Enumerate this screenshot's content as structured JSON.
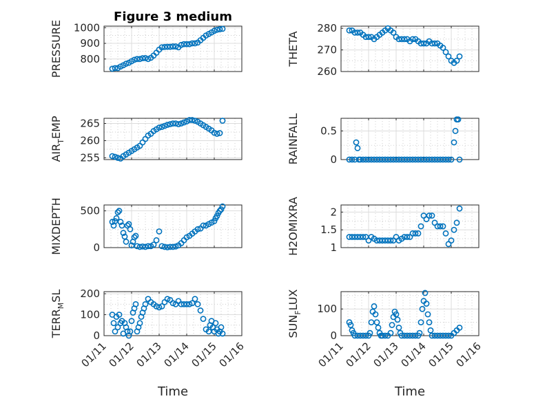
{
  "figure_title": "Figure 3 medium",
  "chart_data": [
    {
      "type": "scatter",
      "ylabel": "PRESSURE",
      "ylabel_sub": "",
      "xlim": [
        11.0,
        16.0
      ],
      "ylim": [
        720,
        1010
      ],
      "yticks": [
        800,
        900,
        1000
      ],
      "yminor": [
        750,
        850,
        950
      ],
      "x": [
        11.3,
        11.4,
        11.5,
        11.6,
        11.7,
        11.8,
        11.9,
        12.0,
        12.1,
        12.2,
        12.3,
        12.4,
        12.5,
        12.6,
        12.7,
        12.8,
        12.9,
        13.0,
        13.1,
        13.2,
        13.3,
        13.4,
        13.5,
        13.6,
        13.7,
        13.8,
        13.9,
        14.0,
        14.1,
        14.2,
        14.3,
        14.4,
        14.5,
        14.6,
        14.7,
        14.8,
        14.9,
        15.0,
        15.1,
        15.2,
        15.3
      ],
      "y": [
        738,
        742,
        742,
        752,
        760,
        770,
        776,
        786,
        795,
        800,
        800,
        805,
        806,
        800,
        808,
        822,
        840,
        860,
        875,
        877,
        878,
        878,
        880,
        880,
        875,
        890,
        895,
        895,
        895,
        900,
        900,
        905,
        920,
        935,
        950,
        960,
        970,
        980,
        987,
        990,
        993
      ]
    },
    {
      "type": "scatter",
      "ylabel": "THETA",
      "ylabel_sub": "",
      "xlim": [
        11.0,
        16.0
      ],
      "ylim": [
        260,
        281
      ],
      "yticks": [
        260,
        270,
        280
      ],
      "yminor": [
        265,
        275
      ],
      "x": [
        11.3,
        11.4,
        11.5,
        11.6,
        11.7,
        11.8,
        11.9,
        12.0,
        12.1,
        12.2,
        12.3,
        12.4,
        12.5,
        12.6,
        12.7,
        12.8,
        12.9,
        13.0,
        13.1,
        13.2,
        13.3,
        13.4,
        13.5,
        13.6,
        13.7,
        13.8,
        13.9,
        14.0,
        14.1,
        14.2,
        14.3,
        14.4,
        14.5,
        14.6,
        14.7,
        14.8,
        14.9,
        15.0,
        15.1,
        15.2,
        15.3
      ],
      "y": [
        279,
        279,
        278,
        278,
        278,
        277,
        276,
        276,
        276,
        275,
        276,
        277,
        278,
        279,
        280,
        279,
        278,
        276,
        275,
        275,
        275,
        275,
        274,
        275,
        275,
        274,
        273,
        273,
        273,
        274,
        273,
        273,
        273,
        272,
        271,
        269,
        267,
        265,
        264,
        265,
        267
      ]
    },
    {
      "type": "scatter",
      "ylabel": "AIR",
      "ylabel_sub": "T",
      "ylabel_suffix": "EMP",
      "xlim": [
        11.0,
        16.0
      ],
      "ylim": [
        254.5,
        266.5
      ],
      "yticks": [
        255,
        260,
        265
      ],
      "yminor": [
        257.5,
        262.5
      ],
      "x": [
        11.3,
        11.4,
        11.5,
        11.6,
        11.7,
        11.8,
        11.9,
        12.0,
        12.1,
        12.2,
        12.3,
        12.4,
        12.5,
        12.6,
        12.7,
        12.8,
        12.9,
        13.0,
        13.1,
        13.2,
        13.3,
        13.4,
        13.5,
        13.6,
        13.7,
        13.8,
        13.9,
        14.0,
        14.1,
        14.2,
        14.3,
        14.4,
        14.5,
        14.6,
        14.7,
        14.8,
        14.9,
        15.0,
        15.1,
        15.2,
        15.3
      ],
      "y": [
        255.5,
        255.3,
        255.0,
        254.8,
        255.5,
        256.0,
        256.5,
        257.0,
        257.5,
        258.0,
        258.5,
        259.5,
        260.5,
        261.5,
        262.0,
        262.8,
        263.3,
        263.8,
        264.0,
        264.3,
        264.6,
        264.8,
        265.0,
        265.0,
        264.8,
        265.0,
        265.3,
        265.6,
        266.0,
        266.0,
        265.8,
        265.5,
        265.0,
        264.5,
        264.0,
        263.5,
        263.0,
        262.3,
        262.0,
        262.2,
        265.8
      ]
    },
    {
      "type": "scatter",
      "ylabel": "RAINFALL",
      "ylabel_sub": "",
      "xlim": [
        11.0,
        16.0
      ],
      "ylim": [
        0,
        0.72
      ],
      "yticks": [
        0,
        0.5
      ],
      "ytick_labels": [
        "0",
        "0.5"
      ],
      "yminor": [
        0.25
      ],
      "x": [
        11.3,
        11.4,
        11.5,
        11.55,
        11.6,
        11.65,
        11.7,
        11.8,
        11.9,
        12.0,
        12.1,
        12.2,
        12.3,
        12.4,
        12.5,
        12.6,
        12.7,
        12.8,
        12.9,
        13.0,
        13.1,
        13.2,
        13.3,
        13.4,
        13.5,
        13.6,
        13.7,
        13.8,
        13.9,
        14.0,
        14.1,
        14.2,
        14.3,
        14.4,
        14.5,
        14.6,
        14.7,
        14.8,
        14.9,
        15.0,
        15.1,
        15.15,
        15.2,
        15.25,
        15.3
      ],
      "y": [
        0,
        0,
        0,
        0.3,
        0.2,
        0,
        0,
        0,
        0,
        0,
        0,
        0,
        0,
        0,
        0,
        0,
        0,
        0,
        0,
        0,
        0,
        0,
        0,
        0,
        0,
        0,
        0,
        0,
        0,
        0,
        0,
        0,
        0,
        0,
        0,
        0,
        0,
        0,
        0,
        0,
        0.3,
        0.5,
        0.7,
        0.7,
        0
      ]
    },
    {
      "type": "scatter",
      "ylabel": "MIXDEPTH",
      "ylabel_sub": "",
      "xlim": [
        11.0,
        16.0
      ],
      "ylim": [
        0,
        580
      ],
      "yticks": [
        0,
        500
      ],
      "yminor": [
        250
      ],
      "x": [
        11.3,
        11.35,
        11.4,
        11.45,
        11.5,
        11.55,
        11.6,
        11.65,
        11.7,
        11.75,
        11.8,
        11.85,
        11.9,
        11.95,
        12.0,
        12.05,
        12.1,
        12.15,
        12.2,
        12.3,
        12.4,
        12.5,
        12.6,
        12.7,
        12.8,
        12.9,
        13.0,
        13.1,
        13.2,
        13.3,
        13.4,
        13.5,
        13.6,
        13.7,
        13.8,
        13.9,
        14.0,
        14.1,
        14.2,
        14.3,
        14.4,
        14.5,
        14.6,
        14.7,
        14.8,
        14.9,
        15.0,
        15.05,
        15.1,
        15.15,
        15.2,
        15.25,
        15.3
      ],
      "y": [
        350,
        300,
        360,
        400,
        480,
        500,
        350,
        300,
        200,
        150,
        80,
        300,
        320,
        250,
        30,
        80,
        140,
        160,
        20,
        10,
        15,
        10,
        20,
        20,
        40,
        100,
        220,
        20,
        10,
        5,
        10,
        10,
        15,
        30,
        60,
        100,
        140,
        160,
        190,
        220,
        250,
        260,
        300,
        300,
        320,
        340,
        360,
        400,
        430,
        470,
        500,
        520,
        560
      ]
    },
    {
      "type": "scatter",
      "ylabel": "H2OMIXRA",
      "ylabel_sub": "",
      "xlim": [
        11.0,
        16.0
      ],
      "ylim": [
        1.0,
        2.2
      ],
      "yticks": [
        1,
        1.5,
        2
      ],
      "ytick_labels": [
        "1",
        "1.5",
        "2"
      ],
      "yminor": [
        1.25,
        1.75
      ],
      "x": [
        11.3,
        11.4,
        11.5,
        11.6,
        11.7,
        11.8,
        11.9,
        12.0,
        12.1,
        12.2,
        12.3,
        12.4,
        12.5,
        12.6,
        12.7,
        12.8,
        12.9,
        13.0,
        13.1,
        13.2,
        13.3,
        13.4,
        13.5,
        13.6,
        13.7,
        13.8,
        13.9,
        14.0,
        14.1,
        14.2,
        14.3,
        14.4,
        14.5,
        14.6,
        14.7,
        14.8,
        14.9,
        15.0,
        15.1,
        15.2,
        15.3
      ],
      "y": [
        1.3,
        1.3,
        1.3,
        1.3,
        1.3,
        1.3,
        1.3,
        1.2,
        1.3,
        1.25,
        1.2,
        1.2,
        1.2,
        1.2,
        1.2,
        1.2,
        1.2,
        1.3,
        1.2,
        1.25,
        1.3,
        1.3,
        1.3,
        1.4,
        1.4,
        1.4,
        1.6,
        1.9,
        1.8,
        1.9,
        1.9,
        1.7,
        1.6,
        1.6,
        1.6,
        1.4,
        1.1,
        1.2,
        1.5,
        1.7,
        2.1
      ]
    },
    {
      "type": "scatter",
      "ylabel": "TERR",
      "ylabel_sub": "M",
      "ylabel_suffix": "SL",
      "xlim": [
        11.0,
        16.0
      ],
      "ylim": [
        0,
        210
      ],
      "yticks": [
        0,
        100,
        200
      ],
      "yminor": [
        50,
        150
      ],
      "x": [
        11.3,
        11.35,
        11.4,
        11.45,
        11.5,
        11.55,
        11.6,
        11.65,
        11.7,
        11.75,
        11.8,
        11.85,
        11.9,
        11.95,
        12.0,
        12.05,
        12.1,
        12.15,
        12.2,
        12.25,
        12.3,
        12.35,
        12.4,
        12.45,
        12.5,
        12.6,
        12.7,
        12.8,
        12.9,
        13.0,
        13.1,
        13.2,
        13.3,
        13.4,
        13.5,
        13.6,
        13.7,
        13.8,
        13.9,
        14.0,
        14.1,
        14.2,
        14.3,
        14.4,
        14.5,
        14.6,
        14.7,
        14.8,
        14.85,
        14.9,
        14.95,
        15.0,
        15.05,
        15.1,
        15.15,
        15.2,
        15.25,
        15.3
      ],
      "y": [
        100,
        60,
        20,
        90,
        40,
        100,
        60,
        70,
        10,
        60,
        40,
        20,
        0,
        20,
        70,
        110,
        130,
        150,
        20,
        40,
        60,
        90,
        110,
        130,
        150,
        175,
        160,
        150,
        140,
        135,
        140,
        160,
        175,
        170,
        155,
        150,
        165,
        150,
        150,
        150,
        150,
        155,
        175,
        150,
        120,
        80,
        30,
        20,
        50,
        70,
        40,
        20,
        60,
        30,
        10,
        20,
        40,
        10
      ]
    },
    {
      "type": "scatter",
      "ylabel": "SUN",
      "ylabel_sub": "F",
      "ylabel_suffix": "LUX",
      "xlim": [
        11.0,
        16.0
      ],
      "ylim": [
        0,
        165
      ],
      "yticks": [
        0,
        100
      ],
      "yminor": [
        50,
        150
      ],
      "x": [
        11.3,
        11.35,
        11.4,
        11.45,
        11.5,
        11.6,
        11.7,
        11.8,
        11.9,
        12.0,
        12.05,
        12.1,
        12.15,
        12.2,
        12.25,
        12.3,
        12.35,
        12.4,
        12.45,
        12.5,
        12.6,
        12.7,
        12.8,
        12.85,
        12.9,
        12.95,
        13.0,
        13.05,
        13.1,
        13.15,
        13.2,
        13.3,
        13.4,
        13.5,
        13.6,
        13.7,
        13.8,
        13.85,
        13.9,
        13.95,
        14.0,
        14.05,
        14.1,
        14.15,
        14.2,
        14.25,
        14.3,
        14.4,
        14.5,
        14.6,
        14.7,
        14.8,
        14.9,
        15.0,
        15.1,
        15.2,
        15.3
      ],
      "y": [
        50,
        40,
        20,
        10,
        0,
        0,
        0,
        0,
        0,
        0,
        10,
        50,
        90,
        110,
        80,
        50,
        30,
        10,
        0,
        0,
        0,
        0,
        10,
        40,
        70,
        90,
        80,
        60,
        30,
        10,
        0,
        0,
        0,
        0,
        0,
        0,
        0,
        10,
        50,
        100,
        130,
        160,
        120,
        80,
        50,
        20,
        0,
        0,
        0,
        0,
        0,
        0,
        0,
        0,
        10,
        20,
        30
      ]
    }
  ],
  "x_tick_labels": [
    "01/11",
    "01/12",
    "01/13",
    "01/14",
    "01/15",
    "01/16"
  ],
  "x_tick_values": [
    11,
    12,
    13,
    14,
    15,
    16
  ],
  "x_label": "Time"
}
